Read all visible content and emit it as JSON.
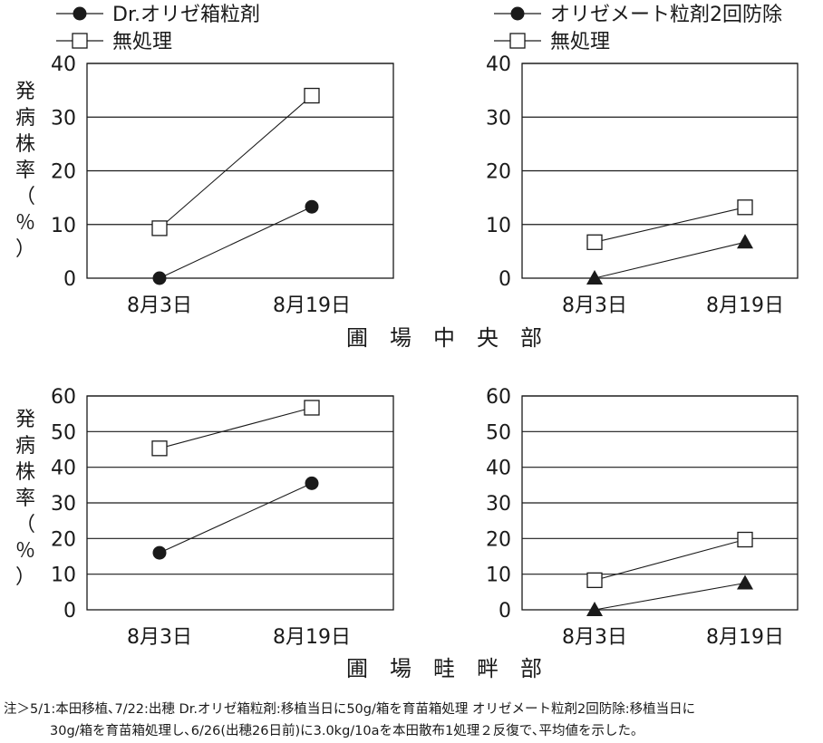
{
  "y_axis_label": [
    "発",
    "病",
    "株",
    "率",
    "（",
    "％",
    "）"
  ],
  "section_labels": [
    "圃　場　中　央　部",
    "圃　場　畦　畔　部"
  ],
  "note": {
    "line1": "注＞5/1:本田移植､7/22:出穂 Dr.オリゼ箱粒剤:移植当日に50g/箱を育苗箱処理 オリゼメート粒剤2回防除:移植当日に",
    "line2": "30g/箱を育苗箱処理し､6/26(出穂26日前)に3.0kg/10aを本田散布1処理２反復で､平均値を示した｡"
  },
  "chart_data": [
    {
      "type": "line",
      "location": "圃場中央部",
      "categories": [
        "8月3日",
        "8月19日"
      ],
      "ylim": [
        0,
        40
      ],
      "yticks": [
        0,
        10,
        20,
        30,
        40
      ],
      "grid": true,
      "legend": "top-left",
      "series": [
        {
          "name": "Dr.オリゼ箱粒剤",
          "marker": "filled-circle",
          "values": [
            0,
            13.3
          ]
        },
        {
          "name": "無処理",
          "marker": "open-square",
          "values": [
            9.3,
            34
          ]
        }
      ]
    },
    {
      "type": "line",
      "location": "圃場中央部",
      "categories": [
        "8月3日",
        "8月19日"
      ],
      "ylim": [
        0,
        40
      ],
      "yticks": [
        0,
        10,
        20,
        30,
        40
      ],
      "grid": true,
      "legend": "top-left",
      "series": [
        {
          "name": "オリゼメート粒剤2回防除",
          "marker": "filled-triangle",
          "legend_marker": "filled-circle",
          "values": [
            0,
            6.7
          ]
        },
        {
          "name": "無処理",
          "marker": "open-square",
          "values": [
            6.7,
            13.2
          ]
        }
      ]
    },
    {
      "type": "line",
      "location": "圃場畦畔部",
      "categories": [
        "8月3日",
        "8月19日"
      ],
      "ylim": [
        0,
        60
      ],
      "yticks": [
        0,
        10,
        20,
        30,
        40,
        50,
        60
      ],
      "grid": true,
      "series": [
        {
          "name": "Dr.オリゼ箱粒剤",
          "marker": "filled-circle",
          "values": [
            16,
            35.5
          ]
        },
        {
          "name": "無処理",
          "marker": "open-square",
          "values": [
            45.3,
            56.7
          ]
        }
      ]
    },
    {
      "type": "line",
      "location": "圃場畦畔部",
      "categories": [
        "8月3日",
        "8月19日"
      ],
      "ylim": [
        0,
        60
      ],
      "yticks": [
        0,
        10,
        20,
        30,
        40,
        50,
        60
      ],
      "grid": true,
      "series": [
        {
          "name": "オリゼメート粒剤2回防除",
          "marker": "filled-triangle",
          "values": [
            0,
            7.5
          ]
        },
        {
          "name": "無処理",
          "marker": "open-square",
          "values": [
            8.3,
            19.7
          ]
        }
      ]
    }
  ]
}
